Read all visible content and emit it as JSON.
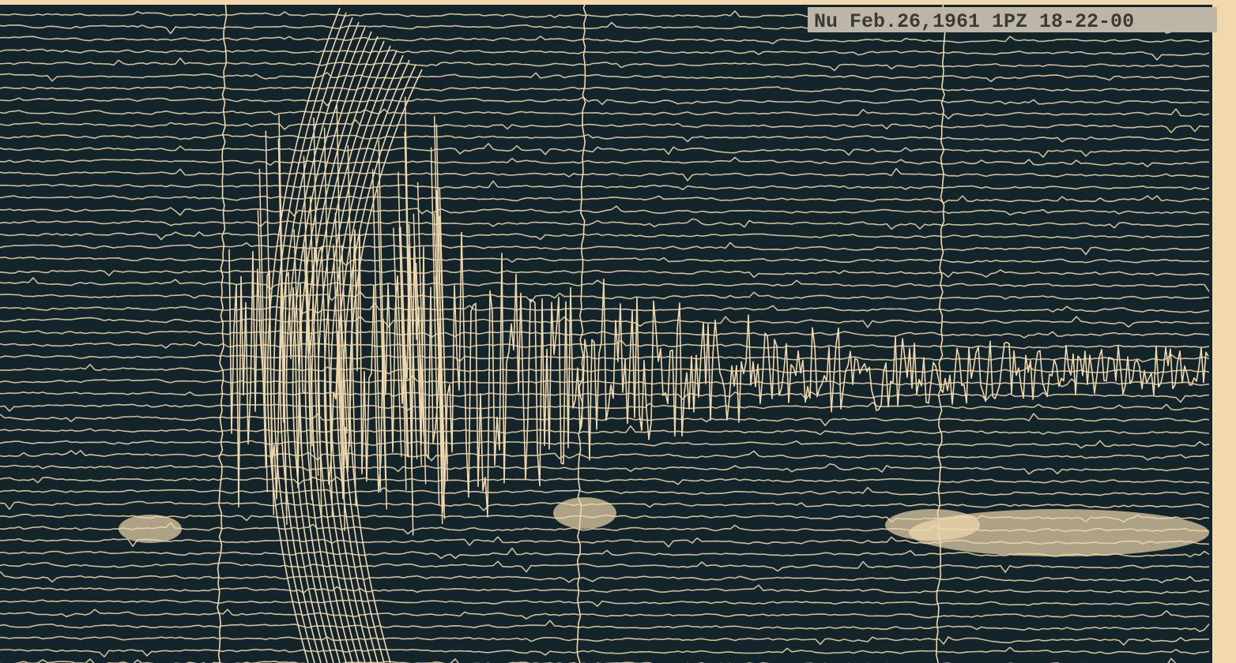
{
  "label": "Nu Feb.26,1961 1PZ 18-22-00"
}
